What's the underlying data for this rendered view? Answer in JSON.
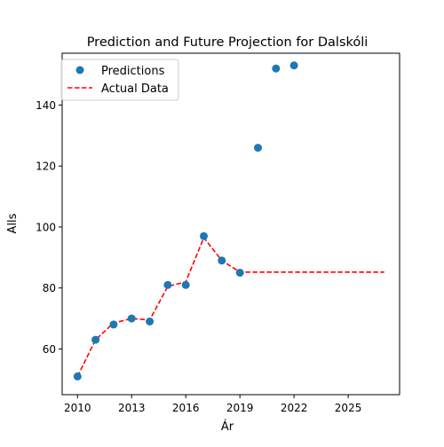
{
  "chart_data": {
    "type": "line",
    "title": "Prediction and Future Projection for Dalskóli",
    "xlabel": "Ár",
    "ylabel": "Alls",
    "xlim": [
      2009.15,
      2027.85
    ],
    "ylim": [
      45,
      157
    ],
    "x_ticks": [
      2010,
      2013,
      2016,
      2019,
      2022,
      2025
    ],
    "y_ticks": [
      60,
      80,
      100,
      120,
      140
    ],
    "grid": false,
    "legend": {
      "placement": "top-left",
      "entries": [
        "Predictions",
        "Actual Data"
      ]
    },
    "series": [
      {
        "name": "Predictions",
        "kind": "scatter",
        "color": "#1f77b4",
        "x": [
          2010,
          2011,
          2012,
          2013,
          2014,
          2015,
          2016,
          2017,
          2018,
          2019,
          2020,
          2021,
          2022
        ],
        "y": [
          51,
          63,
          68,
          70,
          69,
          81,
          81,
          97,
          89,
          85,
          126,
          152,
          153
        ]
      },
      {
        "name": "Actual Data",
        "kind": "line",
        "style": "dashed",
        "color": "#ff0000",
        "x": [
          2010,
          2011,
          2012,
          2013,
          2014,
          2015,
          2016,
          2017,
          2018,
          2019,
          2020,
          2021,
          2022,
          2023,
          2024,
          2025,
          2026,
          2027
        ],
        "y": [
          51,
          63,
          68.5,
          70,
          69.5,
          80.5,
          82,
          96.5,
          89,
          85.2,
          85.2,
          85.2,
          85.2,
          85.2,
          85.2,
          85.2,
          85.2,
          85.2
        ]
      }
    ]
  }
}
